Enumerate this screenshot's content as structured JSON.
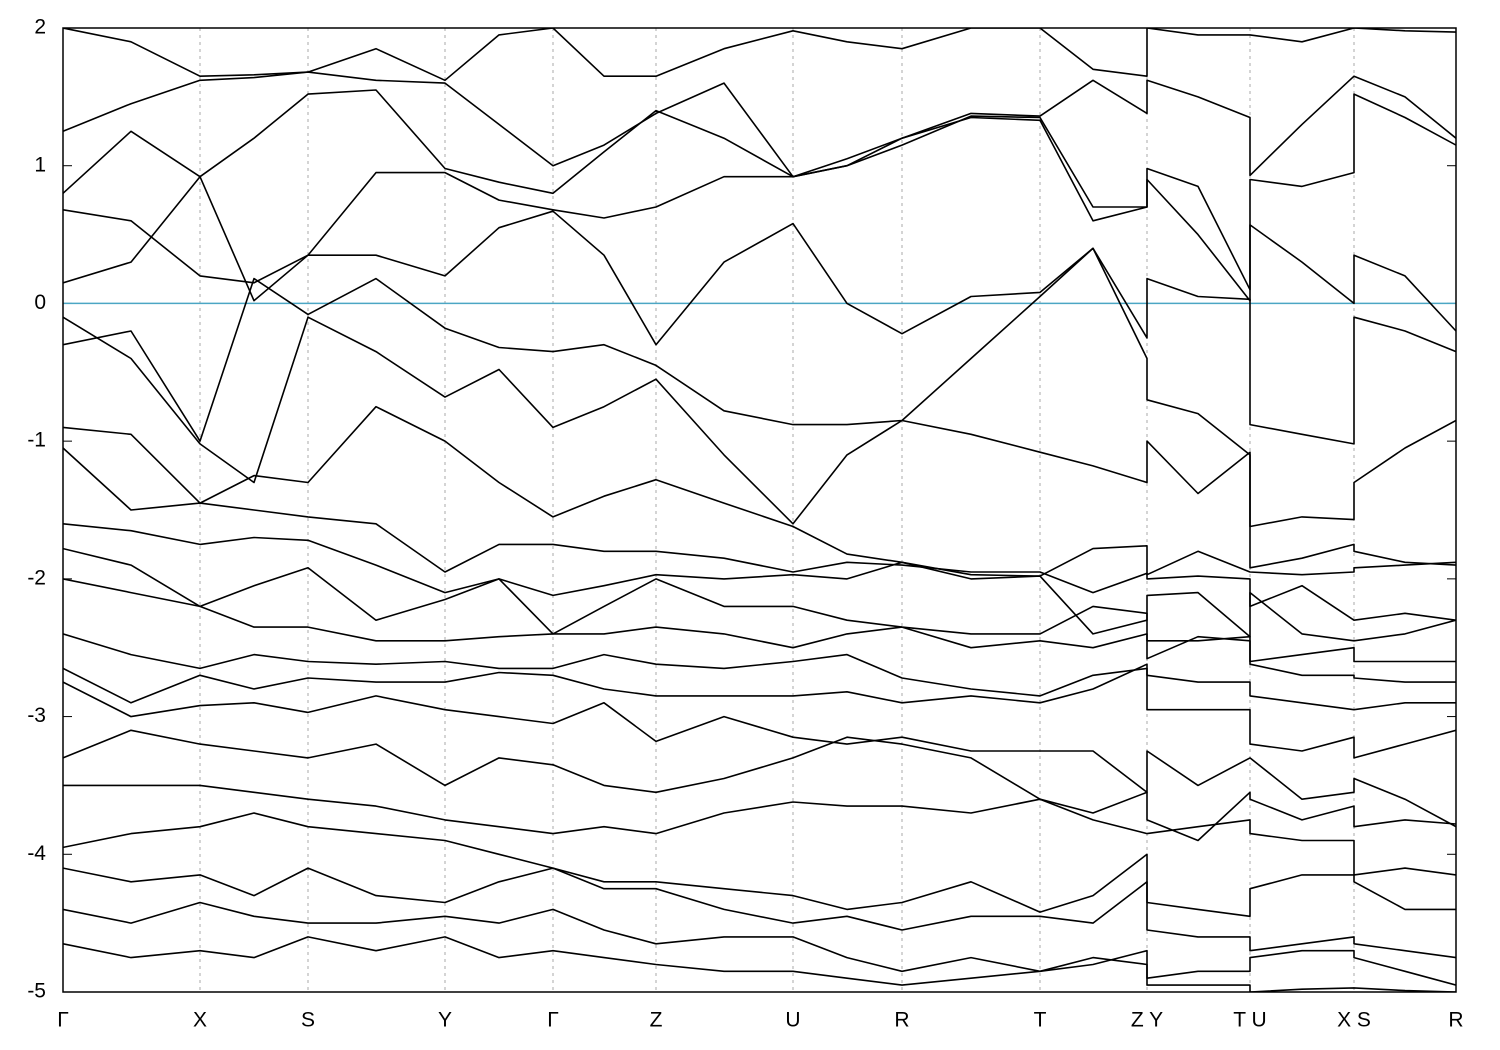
{
  "chart_data": {
    "type": "line",
    "color": "#000000",
    "x": [
      0,
      0.68,
      1.37,
      1.91,
      2.45,
      3.13,
      3.82,
      4.36,
      4.9,
      5.41,
      5.93,
      6.61,
      7.3,
      7.84,
      8.39,
      9.08,
      9.77,
      10.3,
      10.84,
      10.84,
      11.35,
      11.87,
      11.87,
      12.39,
      12.91,
      12.91,
      13.42,
      13.93
    ],
    "series": [
      {
        "values": [
          2.0,
          1.9,
          1.65,
          1.66,
          1.68,
          1.85,
          1.62,
          1.95,
          2.0,
          1.65,
          1.65,
          1.85,
          1.98,
          1.9,
          1.85,
          2.0,
          2.0,
          1.7,
          1.65,
          2.0,
          1.95,
          1.95,
          1.95,
          1.9,
          2.0,
          2.0,
          1.98,
          1.97
        ]
      },
      {
        "values": [
          1.25,
          1.45,
          1.62,
          1.64,
          1.68,
          1.62,
          1.6,
          1.3,
          1.0,
          1.15,
          1.38,
          1.6,
          0.92,
          1.05,
          1.2,
          1.38,
          1.36,
          1.62,
          1.38,
          1.62,
          1.5,
          1.35,
          0.93,
          1.3,
          1.65,
          1.65,
          1.5,
          1.2
        ]
      },
      {
        "values": [
          0.8,
          1.25,
          0.92,
          1.2,
          1.52,
          1.55,
          0.98,
          0.88,
          0.8,
          1.1,
          1.4,
          1.2,
          0.92,
          1.0,
          1.15,
          1.36,
          1.35,
          0.7,
          0.7,
          0.98,
          0.85,
          0.1,
          0.9,
          0.85,
          0.95,
          1.52,
          1.35,
          1.15
        ]
      },
      {
        "values": [
          0.68,
          0.6,
          0.2,
          0.15,
          0.35,
          0.95,
          0.95,
          0.75,
          0.68,
          0.62,
          0.7,
          0.92,
          0.92,
          1.0,
          1.2,
          1.35,
          1.33,
          0.6,
          0.7,
          0.9,
          0.5,
          0.02,
          0.57,
          0.3,
          0.0,
          0.35,
          0.2,
          -0.2
        ]
      },
      {
        "values": [
          0.15,
          0.3,
          0.92,
          0.02,
          0.35,
          0.35,
          0.2,
          0.55,
          0.67,
          0.35,
          -0.3,
          0.3,
          0.58,
          0.0,
          -0.22,
          0.05,
          0.08,
          0.4,
          -0.25,
          0.18,
          0.05,
          0.03,
          -0.88,
          -0.95,
          -1.02,
          -0.1,
          -0.2,
          -0.35
        ]
      },
      {
        "values": [
          -0.3,
          -0.2,
          -1.0,
          0.18,
          -0.08,
          0.18,
          -0.18,
          -0.32,
          -0.35,
          -0.3,
          -0.45,
          -0.78,
          -0.88,
          -0.88,
          -0.85,
          -0.4,
          0.05,
          0.4,
          -0.4,
          -0.7,
          -0.8,
          -1.1,
          -1.62,
          -1.55,
          -1.57,
          -1.3,
          -1.05,
          -0.85
        ]
      },
      {
        "values": [
          -0.1,
          -0.4,
          -1.02,
          -1.3,
          -0.1,
          -0.35,
          -0.68,
          -0.48,
          -0.9,
          -0.75,
          -0.55,
          -1.1,
          -1.6,
          -1.1,
          -0.85,
          -0.95,
          -1.08,
          -1.18,
          -1.3,
          -1.0,
          -1.38,
          -1.08,
          -1.92,
          -1.85,
          -1.75,
          -1.8,
          -1.88,
          -1.9
        ]
      },
      {
        "values": [
          -0.9,
          -0.95,
          -1.45,
          -1.25,
          -1.3,
          -0.75,
          -1.0,
          -1.3,
          -1.55,
          -1.4,
          -1.28,
          -1.45,
          -1.62,
          -1.82,
          -1.88,
          -1.97,
          -1.98,
          -1.78,
          -1.76,
          -1.97,
          -1.8,
          -1.95,
          -1.95,
          -1.97,
          -1.95,
          -1.92,
          -1.9,
          -1.88
        ]
      },
      {
        "values": [
          -1.05,
          -1.5,
          -1.45,
          -1.5,
          -1.55,
          -1.6,
          -1.95,
          -1.75,
          -1.75,
          -1.8,
          -1.8,
          -1.85,
          -1.95,
          -1.88,
          -1.9,
          -1.95,
          -1.95,
          -2.1,
          -1.96,
          -2.0,
          -1.98,
          -2.0,
          -2.2,
          -2.05,
          -2.3,
          -2.3,
          -2.25,
          -2.3
        ]
      },
      {
        "values": [
          -1.6,
          -1.65,
          -1.75,
          -1.7,
          -1.72,
          -1.9,
          -2.1,
          -2.0,
          -2.12,
          -2.05,
          -1.97,
          -2.0,
          -1.97,
          -2.0,
          -1.88,
          -2.0,
          -1.98,
          -2.4,
          -2.3,
          -2.12,
          -2.1,
          -2.42,
          -2.1,
          -2.4,
          -2.45,
          -2.45,
          -2.4,
          -2.3
        ]
      },
      {
        "values": [
          -1.78,
          -1.9,
          -2.2,
          -2.05,
          -1.92,
          -2.3,
          -2.15,
          -2.0,
          -2.4,
          -2.2,
          -2.0,
          -2.2,
          -2.2,
          -2.3,
          -2.35,
          -2.4,
          -2.4,
          -2.2,
          -2.25,
          -2.45,
          -2.45,
          -2.42,
          -2.6,
          -2.55,
          -2.5,
          -2.6,
          -2.6,
          -2.6
        ]
      },
      {
        "values": [
          -2.0,
          -2.1,
          -2.2,
          -2.35,
          -2.35,
          -2.45,
          -2.45,
          -2.42,
          -2.4,
          -2.4,
          -2.35,
          -2.4,
          -2.5,
          -2.4,
          -2.35,
          -2.5,
          -2.45,
          -2.5,
          -2.4,
          -2.58,
          -2.42,
          -2.45,
          -2.62,
          -2.7,
          -2.7,
          -2.72,
          -2.75,
          -2.75
        ]
      },
      {
        "values": [
          -2.4,
          -2.55,
          -2.65,
          -2.55,
          -2.6,
          -2.62,
          -2.6,
          -2.65,
          -2.65,
          -2.55,
          -2.62,
          -2.65,
          -2.6,
          -2.55,
          -2.72,
          -2.8,
          -2.85,
          -2.7,
          -2.65,
          -2.7,
          -2.75,
          -2.75,
          -2.85,
          -2.9,
          -2.95,
          -2.95,
          -2.9,
          -2.9
        ]
      },
      {
        "values": [
          -2.65,
          -2.9,
          -2.7,
          -2.8,
          -2.72,
          -2.75,
          -2.75,
          -2.68,
          -2.7,
          -2.8,
          -2.85,
          -2.85,
          -2.85,
          -2.82,
          -2.9,
          -2.85,
          -2.9,
          -2.8,
          -2.62,
          -2.95,
          -2.95,
          -2.95,
          -3.2,
          -3.25,
          -3.15,
          -3.3,
          -3.2,
          -3.1
        ]
      },
      {
        "values": [
          -2.75,
          -3.0,
          -2.92,
          -2.9,
          -2.97,
          -2.85,
          -2.95,
          -3.0,
          -3.05,
          -2.9,
          -3.18,
          -3.0,
          -3.15,
          -3.2,
          -3.15,
          -3.25,
          -3.25,
          -3.25,
          -3.55,
          -3.25,
          -3.5,
          -3.3,
          -3.3,
          -3.6,
          -3.55,
          -3.45,
          -3.6,
          -3.8
        ]
      },
      {
        "values": [
          -3.3,
          -3.1,
          -3.2,
          -3.25,
          -3.3,
          -3.2,
          -3.5,
          -3.3,
          -3.35,
          -3.5,
          -3.55,
          -3.45,
          -3.3,
          -3.15,
          -3.2,
          -3.3,
          -3.6,
          -3.7,
          -3.55,
          -3.75,
          -3.9,
          -3.55,
          -3.6,
          -3.75,
          -3.65,
          -3.8,
          -3.75,
          -3.78
        ]
      },
      {
        "values": [
          -3.5,
          -3.5,
          -3.5,
          -3.55,
          -3.6,
          -3.65,
          -3.75,
          -3.8,
          -3.85,
          -3.8,
          -3.85,
          -3.7,
          -3.62,
          -3.65,
          -3.65,
          -3.7,
          -3.6,
          -3.75,
          -3.85,
          -3.85,
          -3.8,
          -3.75,
          -3.85,
          -3.9,
          -3.9,
          -4.15,
          -4.1,
          -4.15
        ]
      },
      {
        "values": [
          -3.95,
          -3.85,
          -3.8,
          -3.7,
          -3.8,
          -3.85,
          -3.9,
          -4.0,
          -4.1,
          -4.2,
          -4.2,
          -4.25,
          -4.3,
          -4.4,
          -4.35,
          -4.2,
          -4.42,
          -4.3,
          -4.0,
          -4.35,
          -4.4,
          -4.45,
          -4.25,
          -4.15,
          -4.15,
          -4.2,
          -4.4,
          -4.4
        ]
      },
      {
        "values": [
          -4.1,
          -4.2,
          -4.15,
          -4.3,
          -4.1,
          -4.3,
          -4.35,
          -4.2,
          -4.1,
          -4.25,
          -4.25,
          -4.4,
          -4.5,
          -4.45,
          -4.55,
          -4.45,
          -4.45,
          -4.5,
          -4.2,
          -4.55,
          -4.6,
          -4.6,
          -4.7,
          -4.65,
          -4.6,
          -4.65,
          -4.7,
          -4.75
        ]
      },
      {
        "values": [
          -4.4,
          -4.5,
          -4.35,
          -4.45,
          -4.5,
          -4.5,
          -4.45,
          -4.5,
          -4.4,
          -4.55,
          -4.65,
          -4.6,
          -4.6,
          -4.75,
          -4.85,
          -4.75,
          -4.85,
          -4.8,
          -4.7,
          -4.9,
          -4.85,
          -4.85,
          -4.75,
          -4.7,
          -4.7,
          -4.75,
          -4.85,
          -4.95
        ]
      },
      {
        "values": [
          -4.65,
          -4.75,
          -4.7,
          -4.75,
          -4.6,
          -4.7,
          -4.6,
          -4.75,
          -4.7,
          -4.75,
          -4.8,
          -4.85,
          -4.85,
          -4.9,
          -4.95,
          -4.9,
          -4.85,
          -4.75,
          -4.8,
          -4.95,
          -4.95,
          -4.95,
          -5.0,
          -4.98,
          -4.97,
          -4.97,
          -4.99,
          -5.0
        ]
      }
    ],
    "xlim": [
      0,
      13.93
    ],
    "xticks": [
      {
        "value": 0,
        "label": "Γ"
      },
      {
        "value": 1.37,
        "label": "X"
      },
      {
        "value": 2.45,
        "label": "S"
      },
      {
        "value": 3.82,
        "label": "Y"
      },
      {
        "value": 4.9,
        "label": "Γ"
      },
      {
        "value": 5.93,
        "label": "Z"
      },
      {
        "value": 7.3,
        "label": "U"
      },
      {
        "value": 8.39,
        "label": "R"
      },
      {
        "value": 9.77,
        "label": "T"
      },
      {
        "value": 10.84,
        "label": "Z Y"
      },
      {
        "value": 11.87,
        "label": "T U"
      },
      {
        "value": 12.91,
        "label": "X S"
      },
      {
        "value": 13.93,
        "label": "R"
      }
    ],
    "ylim": [
      -5,
      2
    ],
    "yticks": [
      -5,
      -4,
      -3,
      -2,
      -1,
      0,
      1,
      2
    ],
    "xgrid": true,
    "reference_line": {
      "y": 0,
      "color": "#4ba6c4"
    }
  }
}
